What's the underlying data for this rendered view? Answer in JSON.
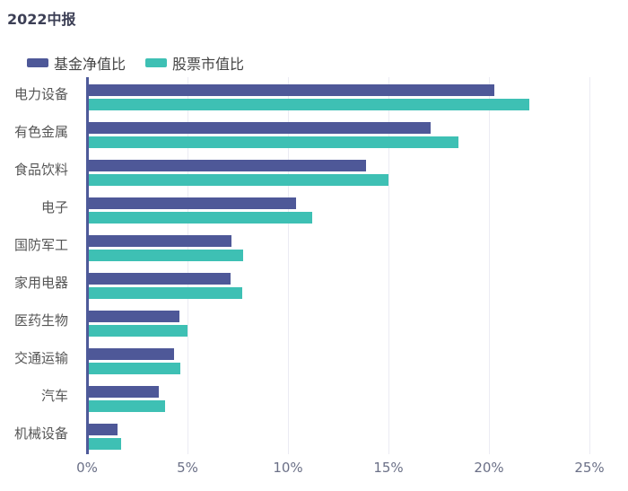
{
  "title": "2022中报",
  "legend": [
    {
      "label": "基金净值比",
      "color": "#4e5898"
    },
    {
      "label": "股票市值比",
      "color": "#3ec0b4"
    }
  ],
  "x_ticks": [
    "0%",
    "5%",
    "10%",
    "15%",
    "20%",
    "25%"
  ],
  "chart_data": {
    "type": "bar",
    "orientation": "horizontal",
    "title": "2022中报",
    "xlabel": "",
    "ylabel": "",
    "xlim": [
      0,
      25
    ],
    "x_tick_labels": [
      "0%",
      "5%",
      "10%",
      "15%",
      "20%",
      "25%"
    ],
    "grid": true,
    "legend_position": "top-left",
    "categories": [
      "电力设备",
      "有色金属",
      "食品饮料",
      "电子",
      "国防军工",
      "家用电器",
      "医药生物",
      "交通运输",
      "汽车",
      "机械设备"
    ],
    "series": [
      {
        "name": "基金净值比",
        "color": "#4e5898",
        "values": [
          20.2,
          17.0,
          13.8,
          10.3,
          7.1,
          7.05,
          4.5,
          4.25,
          3.5,
          1.45
        ]
      },
      {
        "name": "股票市值比",
        "color": "#3ec0b4",
        "values": [
          21.9,
          18.4,
          14.9,
          11.1,
          7.7,
          7.65,
          4.9,
          4.55,
          3.8,
          1.6
        ]
      }
    ]
  }
}
